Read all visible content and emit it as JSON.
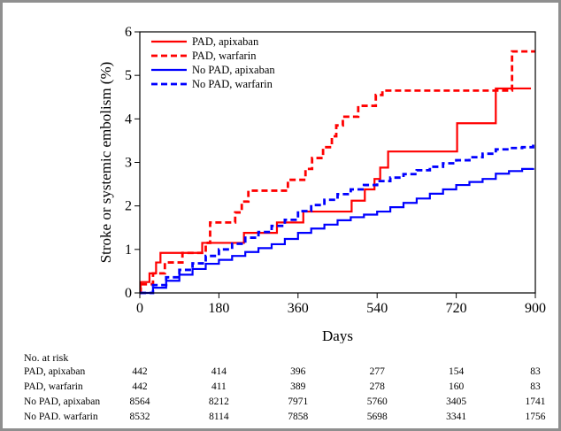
{
  "chart_data": {
    "type": "line",
    "title": "",
    "xlabel": "Days",
    "ylabel": "Stroke or systemic embolism (%)",
    "xlim": [
      0,
      900
    ],
    "ylim": [
      0,
      6
    ],
    "xticks": [
      0,
      180,
      360,
      540,
      720,
      900
    ],
    "yticks": [
      0,
      1,
      2,
      3,
      4,
      5,
      6
    ],
    "grid": false,
    "legend_position": "top-left",
    "step": true,
    "series": [
      {
        "name": "PAD, apixaban",
        "color": "#ff0000",
        "dash": "solid",
        "points": [
          [
            0,
            0
          ],
          [
            2,
            0.25
          ],
          [
            20,
            0.25
          ],
          [
            22,
            0.45
          ],
          [
            35,
            0.45
          ],
          [
            37,
            0.7
          ],
          [
            45,
            0.7
          ],
          [
            47,
            0.92
          ],
          [
            140,
            0.92
          ],
          [
            142,
            1.15
          ],
          [
            235,
            1.15
          ],
          [
            237,
            1.38
          ],
          [
            310,
            1.38
          ],
          [
            312,
            1.62
          ],
          [
            370,
            1.62
          ],
          [
            372,
            1.87
          ],
          [
            480,
            1.87
          ],
          [
            482,
            2.12
          ],
          [
            510,
            2.12
          ],
          [
            512,
            2.38
          ],
          [
            532,
            2.38
          ],
          [
            534,
            2.62
          ],
          [
            545,
            2.62
          ],
          [
            547,
            2.88
          ],
          [
            563,
            2.88
          ],
          [
            565,
            3.25
          ],
          [
            720,
            3.25
          ],
          [
            722,
            3.9
          ],
          [
            808,
            3.9
          ],
          [
            810,
            4.7
          ],
          [
            890,
            4.7
          ]
        ]
      },
      {
        "name": "PAD, warfarin",
        "color": "#ff0000",
        "dash": "dashed",
        "points": [
          [
            0,
            0
          ],
          [
            2,
            0.2
          ],
          [
            28,
            0.2
          ],
          [
            30,
            0.45
          ],
          [
            55,
            0.45
          ],
          [
            57,
            0.7
          ],
          [
            95,
            0.7
          ],
          [
            97,
            0.92
          ],
          [
            148,
            0.92
          ],
          [
            150,
            1.15
          ],
          [
            158,
            1.15
          ],
          [
            160,
            1.62
          ],
          [
            215,
            1.62
          ],
          [
            217,
            1.85
          ],
          [
            230,
            1.85
          ],
          [
            232,
            2.1
          ],
          [
            245,
            2.1
          ],
          [
            247,
            2.35
          ],
          [
            335,
            2.35
          ],
          [
            337,
            2.6
          ],
          [
            375,
            2.6
          ],
          [
            377,
            2.85
          ],
          [
            390,
            2.85
          ],
          [
            392,
            3.1
          ],
          [
            415,
            3.1
          ],
          [
            417,
            3.35
          ],
          [
            435,
            3.35
          ],
          [
            437,
            3.6
          ],
          [
            445,
            3.6
          ],
          [
            447,
            3.85
          ],
          [
            460,
            3.85
          ],
          [
            462,
            4.05
          ],
          [
            495,
            4.05
          ],
          [
            497,
            4.3
          ],
          [
            535,
            4.3
          ],
          [
            537,
            4.55
          ],
          [
            550,
            4.55
          ],
          [
            552,
            4.65
          ],
          [
            845,
            4.65
          ],
          [
            847,
            5.55
          ],
          [
            900,
            5.55
          ]
        ]
      },
      {
        "name": "No PAD, apixaban",
        "color": "#0000ff",
        "dash": "solid",
        "points": [
          [
            0,
            0
          ],
          [
            30,
            0.12
          ],
          [
            60,
            0.28
          ],
          [
            90,
            0.42
          ],
          [
            120,
            0.55
          ],
          [
            150,
            0.67
          ],
          [
            180,
            0.76
          ],
          [
            210,
            0.85
          ],
          [
            240,
            0.94
          ],
          [
            270,
            1.03
          ],
          [
            300,
            1.12
          ],
          [
            330,
            1.24
          ],
          [
            360,
            1.38
          ],
          [
            390,
            1.48
          ],
          [
            420,
            1.57
          ],
          [
            450,
            1.67
          ],
          [
            480,
            1.74
          ],
          [
            510,
            1.8
          ],
          [
            540,
            1.87
          ],
          [
            570,
            1.97
          ],
          [
            600,
            2.07
          ],
          [
            630,
            2.17
          ],
          [
            660,
            2.28
          ],
          [
            690,
            2.38
          ],
          [
            720,
            2.48
          ],
          [
            750,
            2.55
          ],
          [
            780,
            2.62
          ],
          [
            810,
            2.74
          ],
          [
            840,
            2.8
          ],
          [
            870,
            2.85
          ],
          [
            895,
            2.87
          ]
        ]
      },
      {
        "name": "No PAD, warfarin",
        "color": "#0000ff",
        "dash": "dashed",
        "points": [
          [
            0,
            0
          ],
          [
            30,
            0.18
          ],
          [
            60,
            0.36
          ],
          [
            90,
            0.53
          ],
          [
            120,
            0.68
          ],
          [
            150,
            0.85
          ],
          [
            180,
            1.0
          ],
          [
            210,
            1.13
          ],
          [
            240,
            1.27
          ],
          [
            270,
            1.4
          ],
          [
            300,
            1.54
          ],
          [
            330,
            1.68
          ],
          [
            360,
            1.88
          ],
          [
            390,
            2.02
          ],
          [
            420,
            2.14
          ],
          [
            450,
            2.27
          ],
          [
            480,
            2.38
          ],
          [
            510,
            2.48
          ],
          [
            540,
            2.57
          ],
          [
            570,
            2.65
          ],
          [
            600,
            2.73
          ],
          [
            630,
            2.82
          ],
          [
            660,
            2.9
          ],
          [
            690,
            2.98
          ],
          [
            720,
            3.05
          ],
          [
            750,
            3.12
          ],
          [
            780,
            3.2
          ],
          [
            810,
            3.3
          ],
          [
            840,
            3.33
          ],
          [
            870,
            3.35
          ],
          [
            895,
            3.42
          ]
        ]
      }
    ],
    "risk_table": {
      "title": "No. at risk",
      "timepoints": [
        0,
        180,
        360,
        540,
        720,
        900
      ],
      "rows": [
        {
          "label": "PAD, apixaban",
          "values": [
            "442",
            "414",
            "396",
            "277",
            "154",
            "83"
          ]
        },
        {
          "label": "PAD, warfarin",
          "values": [
            "442",
            "411",
            "389",
            "278",
            "160",
            "83"
          ]
        },
        {
          "label": "No PAD, apixaban",
          "values": [
            "8564",
            "8212",
            "7971",
            "5760",
            "3405",
            "1741"
          ]
        },
        {
          "label": "No PAD. warfarin",
          "values": [
            "8532",
            "8114",
            "7858",
            "5698",
            "3341",
            "1756"
          ]
        }
      ]
    }
  }
}
